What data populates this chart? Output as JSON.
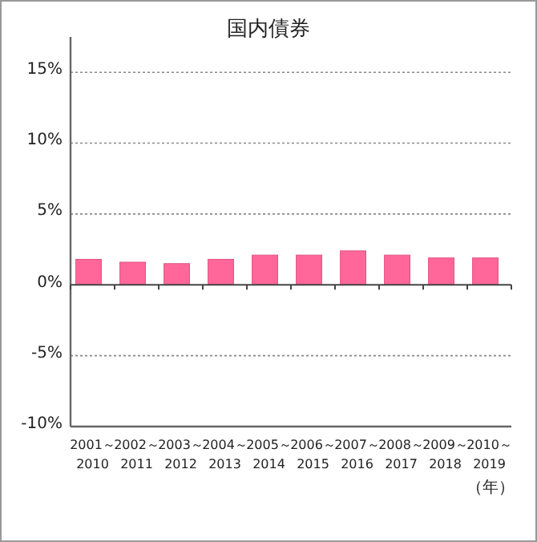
{
  "chart_data": {
    "type": "bar",
    "title": "国内債券",
    "xlabel": "（年）",
    "categories": [
      "2001～2010",
      "2002～2011",
      "2003～2012",
      "2004～2013",
      "2005～2014",
      "2006～2015",
      "2007～2016",
      "2008～2017",
      "2009～2018",
      "2010～2019"
    ],
    "values": [
      1.8,
      1.6,
      1.5,
      1.8,
      2.1,
      2.1,
      2.4,
      2.1,
      1.9,
      1.9
    ],
    "color": "#ff6699",
    "ylim": [
      -10,
      17.5
    ],
    "yticks": [
      {
        "value": -10,
        "label": "-10%"
      },
      {
        "value": -5,
        "label": "-5%"
      },
      {
        "value": 0,
        "label": "0%"
      },
      {
        "value": 5,
        "label": "5%"
      },
      {
        "value": 10,
        "label": "10%"
      },
      {
        "value": 15,
        "label": "15%"
      }
    ],
    "grid": "y"
  }
}
